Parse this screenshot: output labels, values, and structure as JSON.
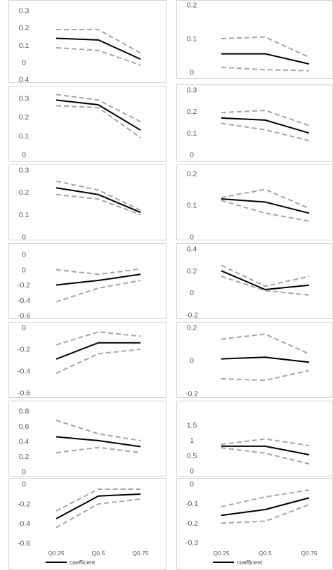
{
  "chart_data": [
    {
      "type": "line",
      "categories": [
        "Q0.25",
        "Q0.5",
        "Q0.75"
      ],
      "ylim": [
        0,
        0.3
      ],
      "yticks": [
        "0.3",
        "0.2",
        "0.1",
        "0"
      ],
      "series": [
        {
          "name": "coefficent",
          "values": [
            0.14,
            0.13,
            0.02
          ]
        },
        {
          "role": "upper",
          "values": [
            0.19,
            0.19,
            0.055
          ]
        },
        {
          "role": "lower",
          "values": [
            0.085,
            0.07,
            -0.015
          ]
        }
      ]
    },
    {
      "type": "line",
      "categories": [
        "Q0.25",
        "Q0.5",
        "Q0.75"
      ],
      "ylim": [
        0,
        0.2
      ],
      "yticks": [
        "0.2",
        "0.1",
        "0"
      ],
      "series": [
        {
          "name": "coefficent",
          "values": [
            0.055,
            0.055,
            0.025
          ]
        },
        {
          "role": "upper",
          "values": [
            0.1,
            0.105,
            0.045
          ]
        },
        {
          "role": "lower",
          "values": [
            0.015,
            0.008,
            0.005
          ]
        }
      ]
    },
    {
      "type": "line",
      "categories": [
        "Q0.25",
        "Q0.5",
        "Q0.75"
      ],
      "ylim": [
        0,
        0.4
      ],
      "yticks": [
        "0.4",
        "0.3",
        "0.2",
        "0.1",
        "0"
      ],
      "series": [
        {
          "name": "coefficent",
          "values": [
            0.29,
            0.265,
            0.13
          ]
        },
        {
          "role": "upper",
          "values": [
            0.32,
            0.29,
            0.175
          ]
        },
        {
          "role": "lower",
          "values": [
            0.26,
            0.25,
            0.09
          ]
        }
      ]
    },
    {
      "type": "line",
      "categories": [
        "Q0.25",
        "Q0.5",
        "Q0.75"
      ],
      "ylim": [
        0,
        0.3
      ],
      "yticks": [
        "0.3",
        "0.2",
        "0.1",
        "0"
      ],
      "series": [
        {
          "name": "coefficent",
          "values": [
            0.17,
            0.16,
            0.1
          ]
        },
        {
          "role": "upper",
          "values": [
            0.195,
            0.205,
            0.135
          ]
        },
        {
          "role": "lower",
          "values": [
            0.145,
            0.115,
            0.065
          ]
        }
      ]
    },
    {
      "type": "line",
      "categories": [
        "Q0.25",
        "Q0.5",
        "Q0.75"
      ],
      "ylim": [
        0,
        0.3
      ],
      "yticks": [
        "0.3",
        "0.2",
        "0.1",
        "0"
      ],
      "series": [
        {
          "name": "coefficent",
          "values": [
            0.22,
            0.19,
            0.11
          ]
        },
        {
          "role": "upper",
          "values": [
            0.25,
            0.21,
            0.12
          ]
        },
        {
          "role": "lower",
          "values": [
            0.19,
            0.17,
            0.1
          ]
        }
      ]
    },
    {
      "type": "line",
      "categories": [
        "Q0.25",
        "Q0.5",
        "Q0.75"
      ],
      "ylim": [
        0,
        0.2
      ],
      "yticks": [
        "0.2",
        "0.1",
        "0"
      ],
      "series": [
        {
          "name": "coefficent",
          "values": [
            0.12,
            0.11,
            0.075
          ]
        },
        {
          "role": "upper",
          "values": [
            0.125,
            0.15,
            0.09
          ]
        },
        {
          "role": "lower",
          "values": [
            0.115,
            0.075,
            0.05
          ]
        }
      ]
    },
    {
      "type": "line",
      "categories": [
        "Q0.25",
        "Q0.5",
        "Q0.75"
      ],
      "ylim": [
        -0.6,
        0.2
      ],
      "yticks": [
        "0",
        "0",
        "-0.2",
        "-0.4",
        "-0.6"
      ],
      "series": [
        {
          "name": "coefficent",
          "values": [
            -0.2,
            -0.14,
            -0.06
          ]
        },
        {
          "role": "upper",
          "values": [
            0.0,
            -0.06,
            0.01
          ]
        },
        {
          "role": "lower",
          "values": [
            -0.42,
            -0.24,
            -0.14
          ]
        }
      ]
    },
    {
      "type": "line",
      "categories": [
        "Q0.25",
        "Q0.5",
        "Q0.75"
      ],
      "ylim": [
        -0.2,
        0.4
      ],
      "yticks": [
        "0.4",
        "0.2",
        "0",
        "-0.2"
      ],
      "series": [
        {
          "name": "coefficent",
          "values": [
            0.2,
            0.03,
            0.07
          ]
        },
        {
          "role": "upper",
          "values": [
            0.25,
            0.06,
            0.15
          ]
        },
        {
          "role": "lower",
          "values": [
            0.15,
            0.02,
            -0.02
          ]
        }
      ]
    },
    {
      "type": "line",
      "categories": [
        "Q0.25",
        "Q0.5",
        "Q0.75"
      ],
      "ylim": [
        -0.6,
        0.0
      ],
      "yticks": [
        "0",
        "-0.2",
        "-0.4",
        "-0.6"
      ],
      "series": [
        {
          "name": "coefficent",
          "values": [
            -0.29,
            -0.14,
            -0.14
          ]
        },
        {
          "role": "upper",
          "values": [
            -0.16,
            -0.04,
            -0.08
          ]
        },
        {
          "role": "lower",
          "values": [
            -0.42,
            -0.24,
            -0.2
          ]
        }
      ]
    },
    {
      "type": "line",
      "categories": [
        "Q0.25",
        "Q0.5",
        "Q0.75"
      ],
      "ylim": [
        -0.2,
        0.2
      ],
      "yticks": [
        "0.2",
        "0",
        "-0.2"
      ],
      "series": [
        {
          "name": "coefficent",
          "values": [
            0.01,
            0.02,
            -0.01
          ]
        },
        {
          "role": "upper",
          "values": [
            0.13,
            0.16,
            0.04
          ]
        },
        {
          "role": "lower",
          "values": [
            -0.11,
            -0.12,
            -0.06
          ]
        }
      ]
    },
    {
      "type": "line",
      "categories": [
        "Q0.25",
        "Q0.5",
        "Q0.75"
      ],
      "ylim": [
        0,
        0.8
      ],
      "yticks": [
        "0.8",
        "0.6",
        "0.4",
        "0.2",
        "0"
      ],
      "series": [
        {
          "name": "coefficent",
          "values": [
            0.46,
            0.41,
            0.33
          ]
        },
        {
          "role": "upper",
          "values": [
            0.68,
            0.5,
            0.41
          ]
        },
        {
          "role": "lower",
          "values": [
            0.25,
            0.32,
            0.25
          ]
        }
      ]
    },
    {
      "type": "line",
      "categories": [
        "Q0.25",
        "Q0.5",
        "Q0.75"
      ],
      "ylim": [
        0,
        1.5
      ],
      "yticks": [
        "1.5",
        "1",
        "0.5",
        "0"
      ],
      "series": [
        {
          "name": "coefficent",
          "values": [
            0.81,
            0.81,
            0.53
          ]
        },
        {
          "role": "upper",
          "values": [
            0.87,
            1.05,
            0.83
          ]
        },
        {
          "role": "lower",
          "values": [
            0.76,
            0.58,
            0.23
          ]
        }
      ]
    },
    {
      "type": "line",
      "categories": [
        "Q0.25",
        "Q0.5",
        "Q0.75"
      ],
      "ylim": [
        -0.6,
        0.0
      ],
      "yticks": [
        "0",
        "-0.2",
        "-0.4",
        "-0.6"
      ],
      "series": [
        {
          "name": "coefficent",
          "values": [
            -0.35,
            -0.12,
            -0.1
          ]
        },
        {
          "role": "upper",
          "values": [
            -0.27,
            -0.05,
            -0.05
          ]
        },
        {
          "role": "lower",
          "values": [
            -0.44,
            -0.2,
            -0.15
          ]
        }
      ]
    },
    {
      "type": "line",
      "categories": [
        "Q0.25",
        "Q0.5",
        "Q0.75"
      ],
      "ylim": [
        -0.3,
        0.0
      ],
      "yticks": [
        "0",
        "-0.1",
        "-0.2",
        "-0.3"
      ],
      "series": [
        {
          "name": "coefficent",
          "values": [
            -0.16,
            -0.13,
            -0.07
          ]
        },
        {
          "role": "upper",
          "values": [
            -0.115,
            -0.065,
            -0.03
          ]
        },
        {
          "role": "lower",
          "values": [
            -0.2,
            -0.19,
            -0.105
          ]
        }
      ]
    }
  ],
  "legend": {
    "label": "coefficent"
  },
  "style": {
    "coef_color": "#000000",
    "band_color": "#a6a6a6",
    "frame_color": "#d4d4d4",
    "text_color": "#595959"
  }
}
